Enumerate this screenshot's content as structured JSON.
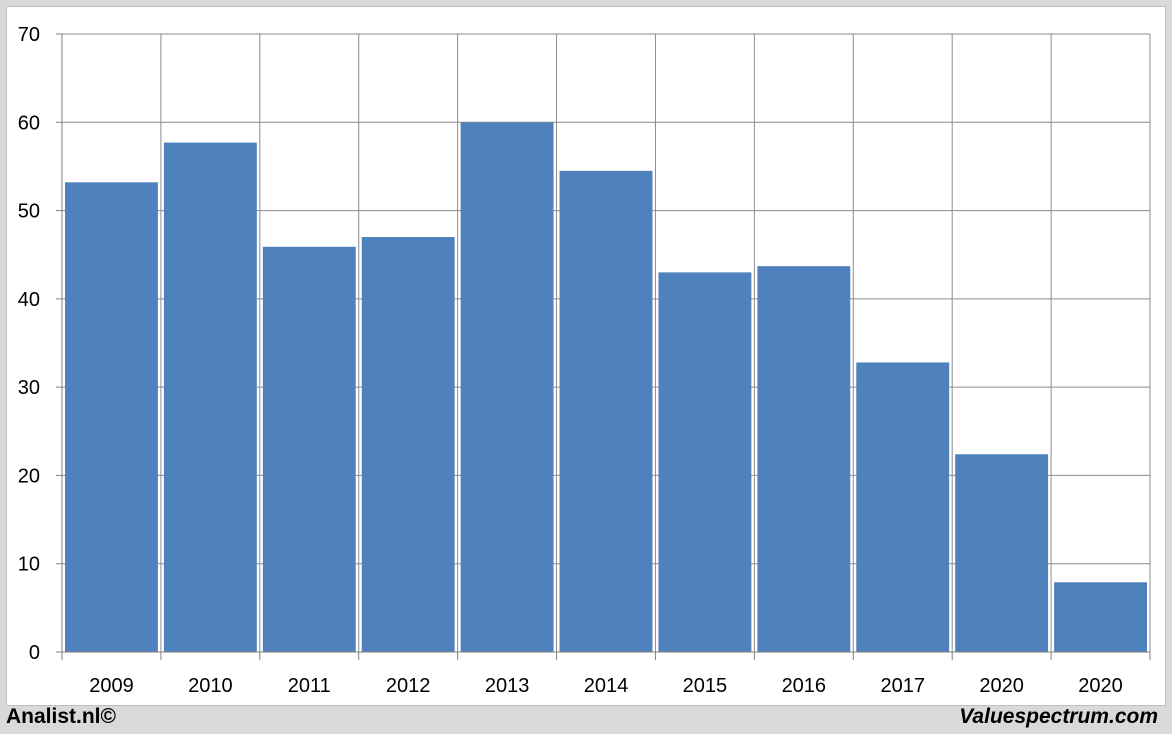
{
  "chart_data": {
    "type": "bar",
    "categories": [
      "2009",
      "2010",
      "2011",
      "2012",
      "2013",
      "2014",
      "2015",
      "2016",
      "2017",
      "2020",
      "2020"
    ],
    "values": [
      53.2,
      57.7,
      45.9,
      47.0,
      60.0,
      54.5,
      43.0,
      43.7,
      32.8,
      22.4,
      7.9
    ],
    "title": "",
    "xlabel": "",
    "ylabel": "",
    "ylim": [
      0,
      70
    ],
    "yticks": [
      0,
      10,
      20,
      30,
      40,
      50,
      60,
      70
    ],
    "grid": true,
    "bar_color": "#4f81bd",
    "grid_color": "#8c8c8c"
  },
  "footer": {
    "left": "Analist.nl©",
    "right": "Valuespectrum.com"
  }
}
